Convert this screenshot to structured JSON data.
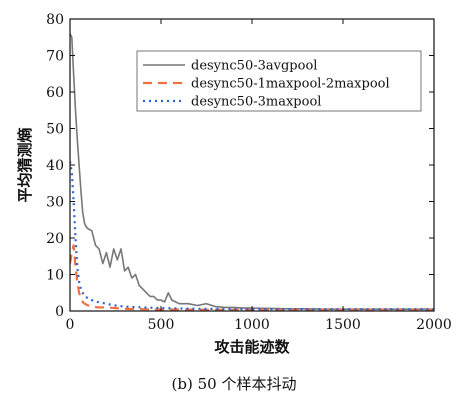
{
  "chart_data": {
    "type": "line",
    "xlabel": "攻击能迹数",
    "ylabel": "平均猜测熵",
    "caption": "(b) 50 个样本抖动",
    "xlim": [
      0,
      2000
    ],
    "ylim": [
      0,
      80
    ],
    "xticks": [
      0,
      500,
      1000,
      1500,
      2000
    ],
    "yticks": [
      0,
      10,
      20,
      30,
      40,
      50,
      60,
      70,
      80
    ],
    "grid": false,
    "legend_position": "top-right",
    "series": [
      {
        "name": "desync50-3avgpool",
        "color": "#777777",
        "dash": "solid",
        "x": [
          0,
          10,
          20,
          30,
          40,
          50,
          60,
          70,
          80,
          90,
          100,
          120,
          140,
          160,
          180,
          200,
          220,
          240,
          260,
          280,
          300,
          320,
          340,
          360,
          380,
          400,
          420,
          440,
          460,
          480,
          500,
          520,
          540,
          560,
          580,
          600,
          650,
          700,
          750,
          800,
          850,
          900,
          950,
          1000,
          1100,
          1200,
          1300,
          1400,
          1500,
          1600,
          1700,
          1800,
          1900,
          2000
        ],
        "y": [
          76,
          75,
          65,
          55,
          47,
          40,
          33,
          27,
          24,
          23,
          22.5,
          22,
          18,
          17,
          13,
          16,
          12,
          17,
          14,
          17,
          11,
          12,
          9,
          10,
          7,
          6,
          5,
          4,
          4,
          3,
          3,
          2.5,
          5,
          3,
          2.5,
          2,
          2,
          1.5,
          2,
          1.2,
          1,
          1,
          0.8,
          0.8,
          0.7,
          0.6,
          0.6,
          0.5,
          0.5,
          0.5,
          0.5,
          0.5,
          0.5,
          0.5
        ]
      },
      {
        "name": "desync50-1maxpool-2maxpool",
        "color": "#f07040",
        "dash": "dashed",
        "x": [
          0,
          10,
          20,
          30,
          40,
          50,
          60,
          70,
          80,
          100,
          120,
          150,
          200,
          250,
          300,
          400,
          500,
          600,
          800,
          1000,
          1200,
          1500,
          2000
        ],
        "y": [
          13,
          16,
          18,
          12,
          8,
          5,
          3.5,
          2.5,
          2,
          1.5,
          1.2,
          1,
          1,
          0.8,
          0.6,
          0.5,
          0.4,
          0.4,
          0.3,
          0.3,
          0.3,
          0.3,
          0.3
        ]
      },
      {
        "name": "desync50-3maxpool",
        "color": "#3060d0",
        "dash": "dotted",
        "x": [
          0,
          10,
          20,
          30,
          40,
          50,
          60,
          70,
          80,
          100,
          120,
          150,
          200,
          250,
          300,
          400,
          500,
          700,
          1000,
          1500,
          2000
        ],
        "y": [
          41,
          38,
          30,
          20,
          12,
          8,
          6,
          5,
          4,
          3.5,
          3,
          2.5,
          2,
          1.5,
          1.2,
          1,
          0.8,
          0.6,
          0.5,
          0.5,
          0.5
        ]
      }
    ]
  }
}
